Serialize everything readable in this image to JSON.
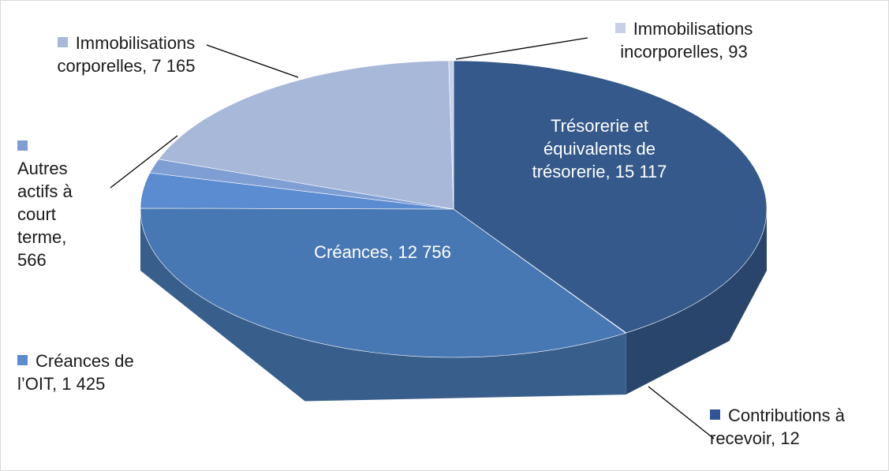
{
  "chart_data": {
    "type": "pie3d",
    "categories": [
      "Trésorerie et équivalents de trésorerie,",
      "Contributions à recevoir,",
      "Créances,",
      "Créances de l’OIT,",
      "Autres actifs à court terme,",
      "Immobilisations corporelles,",
      "Immobilisations incorporelles,"
    ],
    "values": [
      15117,
      12,
      12756,
      1425,
      566,
      7165,
      93
    ],
    "value_labels": [
      "15 117",
      "12",
      "12 756",
      "1 425",
      "566",
      "7 165",
      "93"
    ],
    "colors": [
      "#34598a",
      "#2f5597",
      "#4878b4",
      "#5b8bd0",
      "#7f9fd4",
      "#a8b8d9",
      "#c6d1e7"
    ]
  }
}
